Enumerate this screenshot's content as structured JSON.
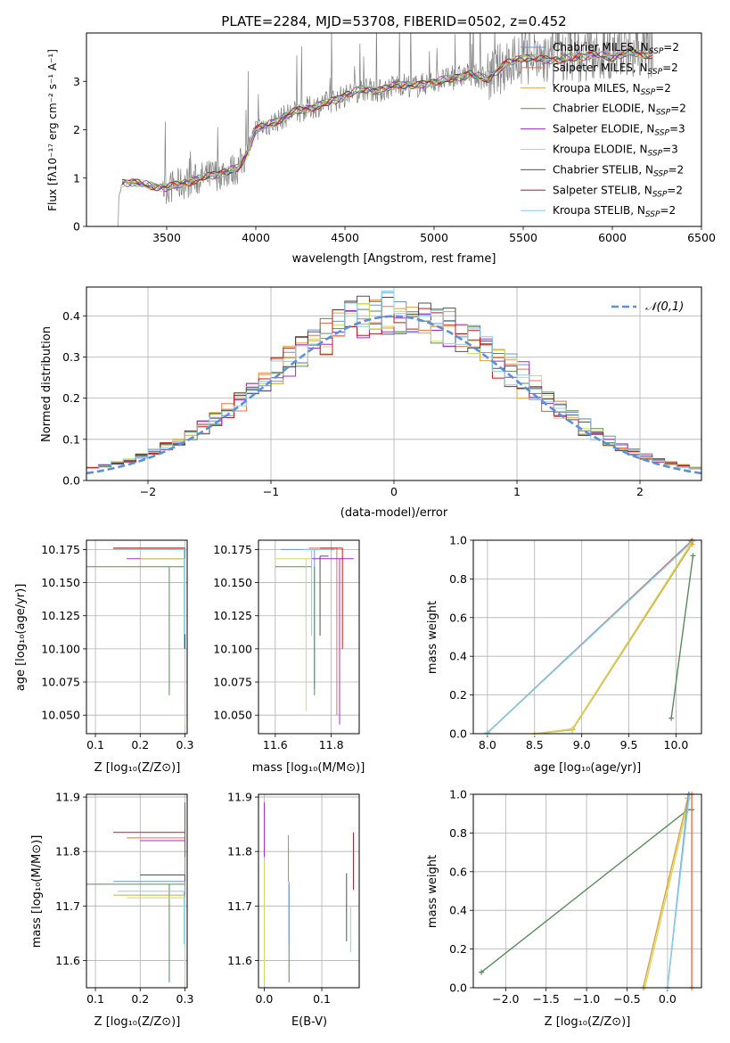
{
  "figure": {
    "title": "PLATE=2284, MJD=53708, FIBERID=0502, z=0.452"
  },
  "models": [
    {
      "name": "Chabrier MILES",
      "nssp": "2",
      "color": "#6f90d8"
    },
    {
      "name": "Salpeter MILES",
      "nssp": "2",
      "color": "#e8704a"
    },
    {
      "name": "Kroupa MILES",
      "nssp": "2",
      "color": "#d9a23a"
    },
    {
      "name": "Chabrier ELODIE",
      "nssp": "2",
      "color": "#5a8a5a"
    },
    {
      "name": "Salpeter ELODIE",
      "nssp": "3",
      "color": "#a02cc8"
    },
    {
      "name": "Kroupa ELODIE",
      "nssp": "3",
      "color": "#d4d860"
    },
    {
      "name": "Chabrier STELIB",
      "nssp": "2",
      "color": "#505050"
    },
    {
      "name": "Salpeter STELIB",
      "nssp": "2",
      "color": "#c01818"
    },
    {
      "name": "Kroupa STELIB",
      "nssp": "2",
      "color": "#88d0e0"
    }
  ],
  "chart_data": [
    {
      "id": "spectrum",
      "type": "line",
      "xlabel": "wavelength [Angstrom, rest frame]",
      "ylabel": "Flux [fλ10⁻¹⁷ erg cm⁻² s⁻¹ A⁻¹]",
      "xlim": [
        3050,
        6500
      ],
      "ylim": [
        0,
        4
      ],
      "xticks": [
        "3500",
        "4000",
        "4500",
        "5000",
        "5500",
        "6000",
        "6500"
      ],
      "yticks": [
        "0",
        "1",
        "2",
        "3"
      ],
      "data_color": "#808080",
      "grid": false,
      "legend": "upper right",
      "model_curve": {
        "x": [
          3200,
          3250,
          3300,
          3400,
          3500,
          3600,
          3700,
          3800,
          3900,
          3950,
          4000,
          4100,
          4200,
          4300,
          4400,
          4500,
          4600,
          4700,
          4800,
          4900,
          5000,
          5100,
          5200,
          5300,
          5400,
          5500,
          5600,
          5700,
          5800,
          5900,
          6000,
          6100,
          6200
        ],
        "y": [
          0.0,
          0.9,
          0.92,
          0.85,
          0.8,
          0.9,
          1.0,
          1.1,
          1.2,
          1.5,
          2.0,
          2.15,
          2.35,
          2.45,
          2.55,
          2.7,
          2.85,
          2.8,
          2.95,
          2.9,
          3.0,
          3.05,
          3.15,
          3.05,
          3.35,
          3.5,
          3.45,
          3.45,
          3.5,
          3.55,
          3.5,
          3.6,
          3.55
        ]
      }
    },
    {
      "id": "residuals",
      "type": "histogram",
      "xlabel": "(data-model)/error",
      "ylabel": "Normed distribution",
      "xlim": [
        -2.5,
        2.5
      ],
      "ylim": [
        0,
        0.47
      ],
      "xticks": [
        "−2",
        "−1",
        "0",
        "1",
        "2"
      ],
      "yticks": [
        "0.0",
        "0.1",
        "0.2",
        "0.3",
        "0.4"
      ],
      "grid": true,
      "legend": "upper right",
      "reference_curve": {
        "label": "𝒩(0,1)",
        "color": "#5b8fd9",
        "mu": 0,
        "sigma": 1
      }
    },
    {
      "id": "age-vs-Z",
      "type": "errorbar",
      "xlabel": "Z [log₁₀(Z/Z⊙)]",
      "ylabel": "age  [log₁₀(age/yr)]",
      "xlim": [
        0.08,
        0.305
      ],
      "ylim": [
        10.036,
        10.182
      ],
      "xticks": [
        "0.1",
        "0.2",
        "0.3"
      ],
      "yticks": [
        "10.050",
        "10.075",
        "10.100",
        "10.125",
        "10.150",
        "10.175"
      ],
      "grid": true
    },
    {
      "id": "age-vs-mass",
      "type": "errorbar",
      "xlabel": "mass [log₁₀(M/M⊙)]",
      "ylabel": "",
      "xlim": [
        11.54,
        11.9
      ],
      "ylim": [
        10.036,
        10.182
      ],
      "xticks": [
        "11.6",
        "11.8"
      ],
      "yticks": [
        "10.050",
        "10.075",
        "10.100",
        "10.125",
        "10.150",
        "10.175"
      ],
      "grid": true
    },
    {
      "id": "weight-vs-age",
      "type": "line",
      "xlabel": "age  [log₁₀(age/yr)]",
      "ylabel": "mass weight",
      "xlim": [
        7.85,
        10.27
      ],
      "ylim": [
        0,
        1
      ],
      "xticks": [
        "8.0",
        "8.5",
        "9.0",
        "9.5",
        "10.0"
      ],
      "yticks": [
        "0.0",
        "0.2",
        "0.4",
        "0.6",
        "0.8",
        "1.0"
      ],
      "grid": true,
      "series": [
        {
          "model": 0,
          "x": [
            8.0,
            10.16
          ],
          "y": [
            0.005,
            0.995
          ]
        },
        {
          "model": 1,
          "x": [
            8.0,
            10.17
          ],
          "y": [
            0.003,
            0.997
          ]
        },
        {
          "model": 8,
          "x": [
            8.0,
            10.18
          ],
          "y": [
            0.004,
            0.996
          ]
        },
        {
          "model": 2,
          "x": [
            8.5,
            8.9,
            10.17
          ],
          "y": [
            0.0,
            0.02,
            0.98
          ]
        },
        {
          "model": 5,
          "x": [
            8.5,
            8.9,
            10.15
          ],
          "y": [
            0.0,
            0.025,
            0.975
          ]
        },
        {
          "model": 3,
          "x": [
            9.95,
            10.18
          ],
          "y": [
            0.08,
            0.92
          ]
        }
      ]
    },
    {
      "id": "mass-vs-Z",
      "type": "errorbar",
      "xlabel": "Z [log₁₀(Z/Z⊙)]",
      "ylabel": "mass [log₁₀(M/M⊙)]",
      "xlim": [
        0.08,
        0.305
      ],
      "ylim": [
        11.55,
        11.905
      ],
      "xticks": [
        "0.1",
        "0.2",
        "0.3"
      ],
      "yticks": [
        "11.6",
        "11.7",
        "11.8",
        "11.9"
      ],
      "grid": true
    },
    {
      "id": "mass-vs-ebv",
      "type": "errorbar",
      "xlabel": "E(B-V)",
      "ylabel": "",
      "xlim": [
        -0.01,
        0.165
      ],
      "ylim": [
        11.55,
        11.905
      ],
      "xticks": [
        "0.0",
        "0.1"
      ],
      "yticks": [
        "11.6",
        "11.7",
        "11.8",
        "11.9"
      ],
      "grid": true
    },
    {
      "id": "weight-vs-Z",
      "type": "line",
      "xlabel": "Z [log₁₀(Z/Z⊙)]",
      "ylabel": "mass weight",
      "xlim": [
        -2.4,
        0.42
      ],
      "ylim": [
        0,
        1
      ],
      "xticks": [
        "−2.0",
        "−1.5",
        "−1.0",
        "−0.5",
        "0.0"
      ],
      "yticks": [
        "0.0",
        "0.2",
        "0.4",
        "0.6",
        "0.8",
        "1.0"
      ],
      "grid": true,
      "series": [
        {
          "model": 3,
          "x": [
            -2.3,
            0.25,
            0.3
          ],
          "y": [
            0.08,
            0.92,
            0.92
          ]
        },
        {
          "model": 2,
          "x": [
            -0.3,
            0.25
          ],
          "y": [
            0.0,
            0.98
          ]
        },
        {
          "model": 5,
          "x": [
            -0.28,
            0.27
          ],
          "y": [
            0.0,
            0.98
          ]
        },
        {
          "model": 0,
          "x": [
            0.0,
            0.26
          ],
          "y": [
            0.0,
            1.0
          ]
        },
        {
          "model": 8,
          "x": [
            0.0,
            0.27
          ],
          "y": [
            0.0,
            1.0
          ]
        },
        {
          "model": 1,
          "x": [
            0.3,
            0.3
          ],
          "y": [
            0.0,
            1.0
          ]
        }
      ]
    }
  ]
}
